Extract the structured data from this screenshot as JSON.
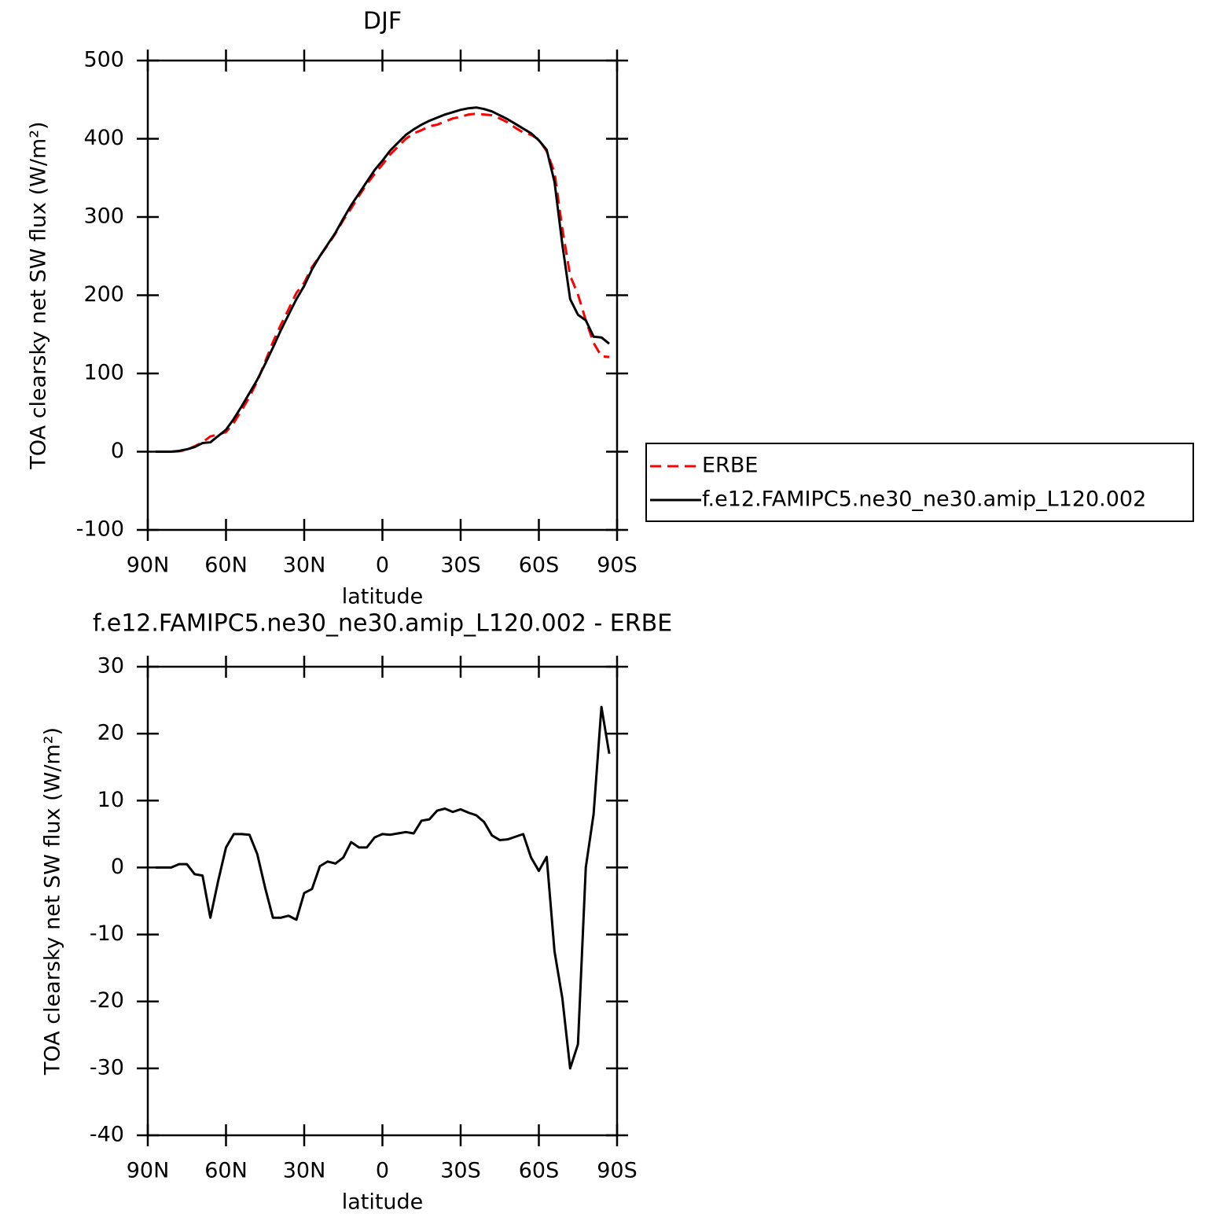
{
  "chart_data": [
    {
      "type": "line",
      "title": "DJF",
      "xlabel": "latitude",
      "ylabel": "TOA clearsky net SW flux (W/m²)",
      "x": [
        87,
        84,
        81,
        78,
        75,
        72,
        69,
        66,
        63,
        60,
        57,
        54,
        51,
        48,
        45,
        42,
        39,
        36,
        33,
        30,
        27,
        24,
        21,
        18,
        15,
        12,
        9,
        6,
        3,
        0,
        -3,
        -6,
        -9,
        -12,
        -15,
        -18,
        -21,
        -24,
        -27,
        -30,
        -33,
        -36,
        -39,
        -42,
        -45,
        -48,
        -51,
        -54,
        -57,
        -60,
        -63,
        -66,
        -69,
        -72,
        -75,
        -78,
        -81,
        -84,
        -87
      ],
      "series": [
        {
          "name": "ERBE",
          "color": "#ff0000",
          "dashed": true,
          "values": [
            0,
            0,
            0,
            0.5,
            2.5,
            7,
            12,
            19.5,
            22,
            25,
            37,
            53,
            70,
            90,
            115,
            140,
            162,
            182,
            203,
            216,
            236,
            250,
            264,
            279,
            296,
            311,
            327,
            342,
            355,
            367,
            380,
            390,
            400,
            407,
            411,
            416,
            418,
            422,
            426,
            428,
            431,
            432,
            431,
            430,
            426,
            421,
            414,
            408,
            405,
            399,
            384,
            357,
            285,
            225,
            201,
            168,
            139,
            122,
            121
          ]
        },
        {
          "name": "f.e12.FAMIPC5.ne30_ne30.amip_L120.002",
          "color": "#000000",
          "dashed": false,
          "values": [
            0,
            0,
            0,
            1,
            3,
            6,
            11,
            12,
            20,
            28,
            42,
            58,
            75,
            92,
            112,
            133,
            155,
            175,
            195,
            212,
            233,
            250,
            265,
            280,
            298,
            315,
            330,
            345,
            360,
            372,
            385,
            395,
            405,
            412,
            418,
            423,
            427,
            431,
            434,
            437,
            439,
            440,
            438,
            435,
            430,
            425,
            419,
            413,
            407,
            398,
            386,
            345,
            265,
            195,
            175,
            168,
            147,
            146,
            138
          ]
        }
      ],
      "xlim": [
        90,
        -90
      ],
      "xticks": [
        {
          "value": 90,
          "label": "90N"
        },
        {
          "value": 60,
          "label": "60N"
        },
        {
          "value": 30,
          "label": "30N"
        },
        0,
        {
          "value": -30,
          "label": "30S"
        },
        {
          "value": -60,
          "label": "60S"
        },
        {
          "value": -90,
          "label": "90S"
        }
      ],
      "ylim": [
        -100,
        500
      ],
      "yticks": [
        -100,
        0,
        100,
        200,
        300,
        400,
        500
      ],
      "legend": "right"
    },
    {
      "type": "line",
      "title": "f.e12.FAMIPC5.ne30_ne30.amip_L120.002 - ERBE",
      "xlabel": "latitude",
      "ylabel": "TOA clearsky net SW flux (W/m²)",
      "x": [
        87,
        84,
        81,
        78,
        75,
        72,
        69,
        66,
        63,
        60,
        57,
        54,
        51,
        48,
        45,
        42,
        39,
        36,
        33,
        30,
        27,
        24,
        21,
        18,
        15,
        12,
        9,
        6,
        3,
        0,
        -3,
        -6,
        -9,
        -12,
        -15,
        -18,
        -21,
        -24,
        -27,
        -30,
        -33,
        -36,
        -39,
        -42,
        -45,
        -48,
        -51,
        -54,
        -57,
        -60,
        -63,
        -66,
        -69,
        -72,
        -75,
        -78,
        -81,
        -84,
        -87
      ],
      "values": [
        0,
        0,
        0,
        0.5,
        0.5,
        -1,
        -1.2,
        -7.5,
        -2,
        3,
        5,
        5,
        4.9,
        2,
        -3,
        -7.5,
        -7.5,
        -7.2,
        -7.8,
        -3.8,
        -3.2,
        0.2,
        0.9,
        0.6,
        1.5,
        3.8,
        3,
        3,
        4.5,
        5,
        4.9,
        5.1,
        5.3,
        5.1,
        7,
        7.2,
        8.5,
        8.8,
        8.3,
        8.7,
        8.2,
        7.8,
        6.8,
        4.8,
        4.1,
        4.2,
        4.6,
        5,
        1.5,
        -0.5,
        1.6,
        -12.5,
        -19.5,
        -30,
        -26.4,
        0,
        8,
        24,
        17
      ],
      "color": "#000000",
      "xlim": [
        90,
        -90
      ],
      "xticks": [
        {
          "value": 90,
          "label": "90N"
        },
        {
          "value": 60,
          "label": "60N"
        },
        {
          "value": 30,
          "label": "30N"
        },
        0,
        {
          "value": -30,
          "label": "30S"
        },
        {
          "value": -60,
          "label": "60S"
        },
        {
          "value": -90,
          "label": "90S"
        }
      ],
      "ylim": [
        -40,
        30
      ],
      "yticks": [
        -40,
        -30,
        -20,
        -10,
        0,
        10,
        20,
        30
      ]
    }
  ]
}
